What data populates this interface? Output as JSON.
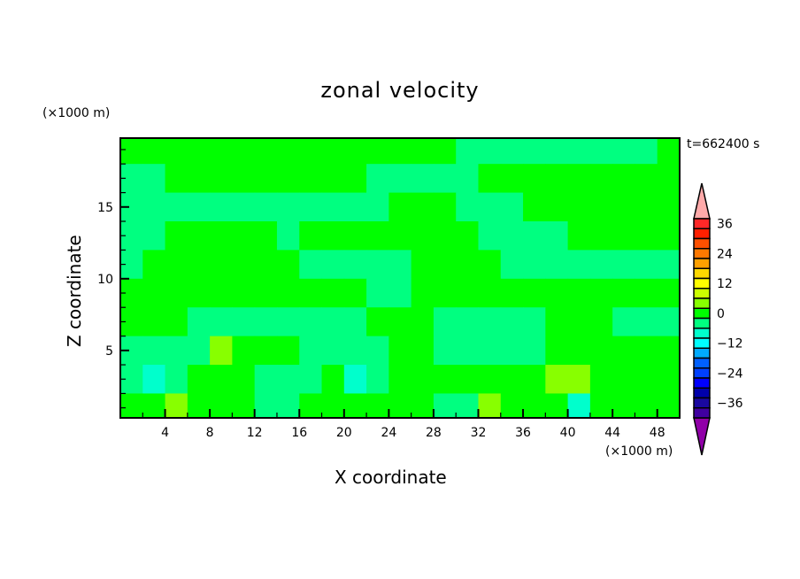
{
  "chart_data": {
    "type": "heatmap",
    "title": "zonal velocity",
    "xlabel": "X coordinate",
    "ylabel": "Z coordinate",
    "x_unit": "(×1000 m)",
    "z_unit": "(×1000 m)",
    "time_label": "t=662400 s",
    "xlim": [
      0,
      50
    ],
    "ylim": [
      0.3,
      19.8
    ],
    "xticks": [
      4,
      8,
      12,
      16,
      20,
      24,
      28,
      32,
      36,
      40,
      44,
      48
    ],
    "yticks": [
      5,
      10,
      15
    ],
    "grid_dx": 2,
    "grid_dz": 2,
    "values_top_to_bottom": [
      [
        2,
        2,
        2,
        2,
        2,
        2,
        2,
        2,
        2,
        2,
        2,
        2,
        2,
        2,
        2,
        -2,
        -2,
        -2,
        -2,
        -2,
        -2,
        -2,
        -2,
        -2,
        2
      ],
      [
        -2,
        -2,
        2,
        2,
        2,
        2,
        2,
        2,
        2,
        2,
        2,
        -2,
        -2,
        -2,
        -2,
        -2,
        2,
        2,
        2,
        2,
        2,
        2,
        2,
        2,
        2
      ],
      [
        -2,
        -2,
        -2,
        -2,
        -2,
        -2,
        -2,
        -2,
        -2,
        -2,
        -2,
        -2,
        2,
        2,
        2,
        -2,
        -2,
        -2,
        2,
        2,
        2,
        2,
        2,
        2,
        2
      ],
      [
        -2,
        -2,
        2,
        2,
        2,
        2,
        2,
        -2,
        2,
        2,
        2,
        2,
        2,
        2,
        2,
        2,
        -2,
        -2,
        -2,
        -2,
        2,
        2,
        2,
        2,
        2
      ],
      [
        -2,
        2,
        2,
        2,
        2,
        2,
        2,
        2,
        -2,
        -2,
        -2,
        -2,
        -2,
        2,
        2,
        2,
        2,
        -2,
        -2,
        -2,
        -2,
        -2,
        -2,
        -2,
        -2
      ],
      [
        2,
        2,
        2,
        2,
        2,
        2,
        2,
        2,
        2,
        2,
        2,
        -2,
        -2,
        2,
        2,
        2,
        2,
        2,
        2,
        2,
        2,
        2,
        2,
        2,
        2
      ],
      [
        2,
        2,
        2,
        -2,
        -2,
        -2,
        -2,
        -2,
        -2,
        -2,
        -2,
        2,
        2,
        2,
        -2,
        -2,
        -2,
        -2,
        -2,
        2,
        2,
        2,
        -2,
        -2,
        -2
      ],
      [
        -2,
        -2,
        -2,
        -2,
        6,
        2,
        2,
        2,
        -2,
        -2,
        -2,
        -2,
        2,
        2,
        -2,
        -2,
        -2,
        -2,
        -2,
        2,
        2,
        2,
        2,
        2,
        2
      ],
      [
        -2,
        -6,
        -2,
        2,
        2,
        2,
        -2,
        -2,
        -2,
        2,
        -6,
        -2,
        2,
        2,
        2,
        2,
        2,
        2,
        2,
        6,
        6,
        2,
        2,
        2,
        2
      ],
      [
        2,
        2,
        6,
        2,
        2,
        2,
        -2,
        -2,
        2,
        2,
        2,
        2,
        2,
        2,
        -2,
        -2,
        6,
        2,
        2,
        2,
        -6,
        2,
        2,
        2,
        2
      ]
    ],
    "colorbar": {
      "labels": [
        "36",
        "24",
        "12",
        "0",
        "-12",
        "-24",
        "-36"
      ],
      "upper_arrow": "#ffaaaa",
      "lower_arrow": "#9000a8",
      "colors": [
        "#ff2828",
        "#ff2000",
        "#ff5000",
        "#ff7800",
        "#ffa000",
        "#ffd800",
        "#ffff00",
        "#ccff00",
        "#88ff00",
        "#00ff00",
        "#00ff80",
        "#00ffcc",
        "#00ffff",
        "#00aaff",
        "#0060ff",
        "#0040ff",
        "#0000ff",
        "#0000aa",
        "#1a08a0",
        "#4000a0"
      ],
      "level_step": 4
    },
    "field_colors": {
      "2": "#00ff00",
      "-2": "#00ff80",
      "6": "#88ff00",
      "-6": "#00ffcc"
    }
  }
}
